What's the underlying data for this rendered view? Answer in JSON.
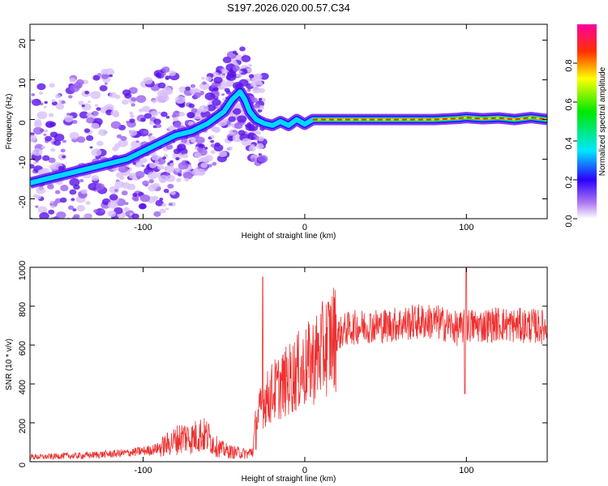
{
  "title": "S197.2026.020.00.57.C34",
  "colors": {
    "signal": "#ee3030",
    "frame": "#000000"
  },
  "chart_data": [
    {
      "type": "heatmap",
      "title": "S197.2026.020.00.57.C34",
      "xlabel": "Height of straight line (km)",
      "ylabel": "Frequency (Hz)",
      "xlim": [
        -170,
        150
      ],
      "ylim": [
        -25,
        24
      ],
      "xticks": [
        -100,
        0,
        100
      ],
      "xtick_labels": [
        "-100",
        "0",
        "100"
      ],
      "yticks": [
        -20,
        -10,
        0,
        10,
        20
      ],
      "ytick_labels": [
        "-20",
        "-10",
        "0",
        "10",
        "20"
      ],
      "ridge": {
        "x": [
          -170,
          -150,
          -130,
          -110,
          -100,
          -90,
          -80,
          -70,
          -60,
          -50,
          -45,
          -40,
          -37,
          -34,
          -30,
          -25,
          -20,
          -15,
          -10,
          -5,
          0,
          5,
          10,
          20,
          40,
          60,
          80,
          95,
          100,
          110,
          120,
          130,
          140,
          150
        ],
        "y": [
          -16,
          -14,
          -12,
          -10,
          -8,
          -6,
          -4,
          -3,
          -1,
          2,
          5,
          7,
          5,
          2,
          0,
          -1,
          -1.5,
          -0.5,
          -1.5,
          0,
          -1.2,
          0,
          0,
          0,
          0,
          0,
          0,
          0.3,
          0.5,
          0.2,
          0.4,
          0,
          0.5,
          0
        ]
      },
      "colorbar": {
        "label": "Normalized spectral amplitude",
        "range": [
          0,
          1
        ],
        "ticks": [
          0.0,
          0.2,
          0.4,
          0.6,
          0.8
        ],
        "tick_labels": [
          "0.0",
          "0.2",
          "0.4",
          "0.6",
          "0.8"
        ]
      }
    },
    {
      "type": "line",
      "xlabel": "Height of straight line (km)",
      "ylabel": "SNR (10 * v/v)",
      "xlim": [
        -170,
        150
      ],
      "ylim": [
        0,
        1000
      ],
      "xticks": [
        -100,
        0,
        100
      ],
      "xtick_labels": [
        "-100",
        "0",
        "100"
      ],
      "yticks": [
        0,
        200,
        400,
        600,
        800,
        1000
      ],
      "ytick_labels": [
        "0",
        "200",
        "400",
        "600",
        "800",
        "1000"
      ],
      "series": [
        {
          "name": "SNR",
          "x": [
            -170,
            -160,
            -150,
            -140,
            -130,
            -120,
            -110,
            -100,
            -95,
            -90,
            -85,
            -80,
            -75,
            -70,
            -65,
            -60,
            -55,
            -50,
            -45,
            -40,
            -35,
            -32,
            -30,
            -27,
            -25,
            -22,
            -20,
            -15,
            -10,
            -5,
            0,
            5,
            10,
            15,
            20,
            25,
            30,
            40,
            50,
            60,
            70,
            80,
            90,
            95,
            100,
            110,
            120,
            130,
            140,
            150
          ],
          "y": [
            25,
            25,
            30,
            30,
            35,
            40,
            45,
            55,
            60,
            70,
            90,
            110,
            130,
            120,
            140,
            130,
            80,
            60,
            50,
            45,
            40,
            60,
            200,
            280,
            320,
            330,
            360,
            390,
            420,
            460,
            480,
            520,
            560,
            620,
            650,
            680,
            690,
            700,
            700,
            710,
            720,
            720,
            700,
            680,
            700,
            700,
            710,
            700,
            700,
            690
          ]
        }
      ],
      "annotations": [
        {
          "x": -26,
          "y": 950,
          "text": ""
        },
        {
          "x": 100,
          "y": 1000,
          "text": ""
        },
        {
          "x": 99,
          "y": 350,
          "text": ""
        }
      ]
    }
  ]
}
